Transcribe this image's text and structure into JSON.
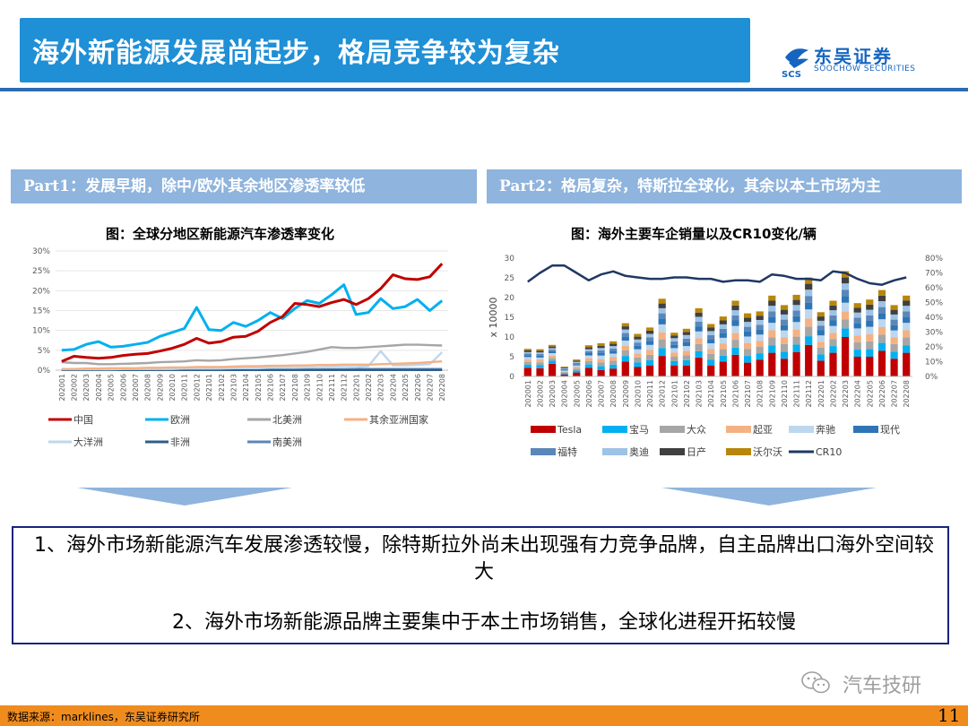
{
  "header": {
    "title": "海外新能源发展尚起步，格局竞争较为复杂",
    "logo_name": "东吴证券",
    "logo_mark": "SCS",
    "logo_sub": "SOOCHOW SECURITIES"
  },
  "parts": {
    "part1": "Part1：发展早期，除中/欧外其余地区渗透率较低",
    "part2": "Part2：格局复杂，特斯拉全球化，其余以本土市场为主"
  },
  "figure1": {
    "title": "图：全球分地区新能源汽车渗透率变化"
  },
  "figure2": {
    "title": "图：海外主要车企销量以及CR10变化/辆"
  },
  "summary": {
    "point1": "1、海外市场新能源汽车发展渗透较慢，除特斯拉外尚未出现强有力竞争品牌，自主品牌出口海外空间较大",
    "point2": "2、海外市场新能源品牌主要集中于本土市场销售，全球化进程开拓较慢"
  },
  "watermark": "汽车技研",
  "footer": {
    "source": "数据来源：marklines，东吴证券研究所",
    "page": "11"
  },
  "colors": {
    "title_bar": "#1f8fd6",
    "part_header": "#8fb4dd",
    "footer": "#f08c1e",
    "logo": "#1565c0"
  },
  "chart_data": [
    {
      "type": "line",
      "title": "图：全球分地区新能源汽车渗透率变化",
      "x": [
        "202001",
        "202002",
        "202003",
        "202004",
        "202005",
        "202006",
        "202007",
        "202008",
        "202009",
        "202010",
        "202011",
        "202012",
        "202101",
        "202102",
        "202103",
        "202104",
        "202105",
        "202106",
        "202107",
        "202108",
        "202109",
        "202110",
        "202111",
        "202112",
        "202201",
        "202202",
        "202203",
        "202204",
        "202205",
        "202206",
        "202207",
        "202208"
      ],
      "y_ticks": [
        "0%",
        "5%",
        "10%",
        "15%",
        "20%",
        "25%",
        "30%"
      ],
      "ylim": [
        0,
        30
      ],
      "series": [
        {
          "name": "中国",
          "color": "#c00000",
          "values": [
            2.2,
            3.5,
            3.2,
            3.0,
            3.2,
            3.7,
            4.0,
            4.2,
            4.8,
            5.5,
            6.5,
            8.0,
            6.8,
            7.2,
            8.3,
            8.5,
            9.8,
            12.0,
            13.5,
            16.8,
            16.5,
            16.0,
            17.0,
            17.8,
            16.5,
            18.0,
            20.5,
            24.0,
            23.0,
            22.8,
            23.5,
            26.8
          ]
        },
        {
          "name": "欧洲",
          "color": "#00b0f0",
          "values": [
            5.0,
            5.2,
            6.5,
            7.2,
            5.8,
            6.0,
            6.5,
            7.0,
            8.5,
            9.5,
            10.5,
            15.8,
            10.2,
            10.0,
            12.0,
            11.0,
            12.5,
            14.5,
            13.0,
            15.5,
            17.5,
            16.8,
            19.0,
            21.5,
            14.0,
            14.5,
            18.0,
            15.5,
            16.0,
            17.8,
            15.0,
            17.5
          ]
        },
        {
          "name": "北美洲",
          "color": "#a6a6a6",
          "values": [
            2.0,
            1.8,
            1.8,
            1.5,
            1.5,
            1.6,
            1.7,
            1.8,
            2.0,
            2.1,
            2.2,
            2.5,
            2.4,
            2.5,
            2.8,
            3.0,
            3.2,
            3.5,
            3.8,
            4.2,
            4.6,
            5.2,
            5.8,
            5.6,
            5.6,
            5.8,
            6.0,
            6.2,
            6.4,
            6.4,
            6.3,
            6.2
          ]
        },
        {
          "name": "其余亚洲国家",
          "color": "#f4b183",
          "values": [
            0.3,
            0.3,
            0.4,
            0.4,
            0.5,
            0.5,
            0.5,
            0.6,
            0.6,
            0.7,
            0.7,
            0.8,
            0.8,
            0.8,
            0.9,
            1.0,
            1.0,
            1.1,
            1.1,
            1.2,
            1.2,
            1.3,
            1.3,
            1.4,
            1.4,
            1.4,
            1.5,
            1.6,
            1.7,
            1.8,
            2.0,
            2.2
          ]
        },
        {
          "name": "大洋洲",
          "color": "#bdd7ee",
          "values": [
            0.2,
            0.2,
            0.2,
            0.2,
            0.2,
            0.3,
            0.3,
            0.3,
            0.3,
            0.3,
            0.4,
            0.4,
            0.4,
            0.4,
            0.5,
            0.5,
            0.5,
            0.6,
            0.6,
            0.6,
            0.7,
            0.7,
            0.8,
            0.8,
            0.8,
            1.0,
            4.8,
            1.2,
            1.2,
            1.3,
            1.5,
            4.5
          ]
        },
        {
          "name": "非洲",
          "color": "#2e5e8a",
          "values": [
            0.05,
            0.05,
            0.05,
            0.05,
            0.05,
            0.05,
            0.05,
            0.05,
            0.05,
            0.05,
            0.05,
            0.05,
            0.05,
            0.05,
            0.05,
            0.05,
            0.05,
            0.05,
            0.05,
            0.05,
            0.05,
            0.05,
            0.05,
            0.05,
            0.05,
            0.05,
            0.05,
            0.05,
            0.05,
            0.05,
            0.05,
            0.05
          ]
        },
        {
          "name": "南美洲",
          "color": "#5b87b8",
          "values": [
            0.1,
            0.1,
            0.1,
            0.1,
            0.1,
            0.1,
            0.1,
            0.1,
            0.1,
            0.1,
            0.1,
            0.1,
            0.1,
            0.1,
            0.2,
            0.2,
            0.2,
            0.2,
            0.2,
            0.2,
            0.2,
            0.2,
            0.2,
            0.2,
            0.3,
            0.3,
            0.3,
            0.3,
            0.3,
            0.3,
            0.3,
            0.3
          ]
        }
      ]
    },
    {
      "type": "bar",
      "stacked": true,
      "title": "图：海外主要车企销量以及CR10变化/辆",
      "y_unit_label": "x 10000",
      "ylim": [
        0,
        30
      ],
      "y_ticks": [
        "0",
        "5",
        "10",
        "15",
        "20",
        "25",
        "30"
      ],
      "y2lim": [
        0,
        80
      ],
      "y2_ticks": [
        "0%",
        "10%",
        "20%",
        "30%",
        "40%",
        "50%",
        "60%",
        "70%",
        "80%"
      ],
      "x": [
        "202001",
        "202002",
        "202003",
        "202004",
        "202005",
        "202006",
        "202007",
        "202008",
        "202009",
        "202010",
        "202011",
        "202012",
        "202101",
        "202102",
        "202103",
        "202104",
        "202105",
        "202106",
        "202107",
        "202108",
        "202109",
        "202110",
        "202111",
        "202112",
        "202201",
        "202202",
        "202203",
        "202204",
        "202205",
        "202206",
        "202207",
        "202208"
      ],
      "series": [
        {
          "name": "Tesla",
          "color": "#c00000",
          "values": [
            2.2,
            2.1,
            3.2,
            0.5,
            1.0,
            2.2,
            1.6,
            2.0,
            3.8,
            2.4,
            2.8,
            5.2,
            2.8,
            2.8,
            4.8,
            2.8,
            3.8,
            5.5,
            3.5,
            4.2,
            6.0,
            4.5,
            6.2,
            8.0,
            4.0,
            6.0,
            10.0,
            5.0,
            5.0,
            6.5,
            4.5,
            6.0
          ]
        },
        {
          "name": "宝马",
          "color": "#00b0f0",
          "values": [
            0.8,
            0.8,
            0.8,
            0.3,
            0.5,
            0.9,
            1.0,
            1.0,
            1.4,
            1.2,
            1.3,
            2.0,
            1.1,
            1.3,
            1.6,
            1.4,
            1.5,
            1.8,
            1.7,
            1.6,
            1.9,
            1.8,
            1.9,
            2.2,
            1.6,
            1.7,
            2.2,
            1.8,
            1.9,
            2.0,
            1.8,
            1.9
          ]
        },
        {
          "name": "大众",
          "color": "#a6a6a6",
          "values": [
            0.7,
            0.7,
            0.7,
            0.3,
            0.5,
            0.8,
            1.0,
            1.0,
            1.4,
            1.2,
            1.4,
            2.2,
            1.2,
            1.3,
            1.8,
            1.5,
            1.6,
            2.0,
            1.8,
            1.7,
            2.0,
            1.9,
            2.0,
            2.4,
            1.7,
            1.8,
            2.3,
            1.9,
            2.0,
            2.1,
            1.9,
            2.0
          ]
        },
        {
          "name": "起亚",
          "color": "#f4b183",
          "values": [
            0.6,
            0.6,
            0.6,
            0.2,
            0.4,
            0.7,
            0.8,
            0.9,
            1.2,
            1.0,
            1.2,
            1.8,
            1.0,
            1.1,
            1.5,
            1.3,
            1.4,
            1.7,
            1.5,
            1.5,
            1.8,
            1.7,
            1.8,
            2.1,
            1.5,
            1.6,
            2.0,
            1.7,
            1.8,
            1.9,
            1.7,
            1.8
          ]
        },
        {
          "name": "奔驰",
          "color": "#bdd7ee",
          "values": [
            0.6,
            0.6,
            0.6,
            0.2,
            0.4,
            0.7,
            0.9,
            0.9,
            1.3,
            1.1,
            1.3,
            2.0,
            1.1,
            1.2,
            1.7,
            1.4,
            1.5,
            1.8,
            1.6,
            1.6,
            1.9,
            1.8,
            1.9,
            2.3,
            1.6,
            1.7,
            2.2,
            1.8,
            1.9,
            2.0,
            1.8,
            1.9
          ]
        },
        {
          "name": "现代",
          "color": "#2e75b6",
          "values": [
            0.5,
            0.5,
            0.5,
            0.2,
            0.3,
            0.6,
            0.7,
            0.7,
            1.0,
            0.9,
            1.0,
            1.5,
            0.9,
            1.0,
            1.3,
            1.1,
            1.2,
            1.4,
            1.3,
            1.3,
            1.5,
            1.4,
            1.5,
            1.8,
            1.3,
            1.4,
            1.7,
            1.4,
            1.5,
            1.6,
            1.4,
            1.5
          ]
        },
        {
          "name": "福特",
          "color": "#5b87b8",
          "values": [
            0.4,
            0.4,
            0.4,
            0.2,
            0.3,
            0.5,
            0.6,
            0.6,
            0.9,
            0.8,
            0.9,
            1.3,
            0.8,
            0.9,
            1.2,
            1.0,
            1.1,
            1.3,
            1.2,
            1.2,
            1.4,
            1.3,
            1.4,
            1.6,
            1.2,
            1.3,
            1.6,
            1.3,
            1.4,
            1.5,
            1.3,
            1.4
          ]
        },
        {
          "name": "奥迪",
          "color": "#9dc3e6",
          "values": [
            0.4,
            0.4,
            0.4,
            0.2,
            0.3,
            0.5,
            0.6,
            0.6,
            0.9,
            0.8,
            0.9,
            1.3,
            0.8,
            0.9,
            1.2,
            1.0,
            1.1,
            1.3,
            1.2,
            1.2,
            1.4,
            1.3,
            1.4,
            1.6,
            1.2,
            1.3,
            1.6,
            1.3,
            1.4,
            1.5,
            1.3,
            1.4
          ]
        },
        {
          "name": "日产",
          "color": "#404040",
          "values": [
            0.4,
            0.4,
            0.4,
            0.2,
            0.3,
            0.5,
            0.6,
            0.6,
            0.8,
            0.7,
            0.8,
            1.2,
            0.7,
            0.8,
            1.1,
            0.9,
            1.0,
            1.2,
            1.1,
            1.1,
            1.3,
            1.2,
            1.3,
            1.5,
            1.1,
            1.2,
            1.5,
            1.2,
            1.3,
            1.4,
            1.2,
            1.3
          ]
        },
        {
          "name": "沃尔沃",
          "color": "#b8860b",
          "values": [
            0.4,
            0.4,
            0.4,
            0.2,
            0.3,
            0.5,
            0.6,
            0.6,
            0.8,
            0.7,
            0.8,
            1.2,
            0.7,
            0.8,
            1.1,
            0.9,
            1.0,
            1.2,
            1.1,
            1.1,
            1.3,
            1.2,
            1.3,
            1.6,
            1.1,
            1.2,
            1.6,
            1.2,
            1.3,
            1.4,
            1.2,
            1.3
          ]
        },
        {
          "name": "CR10",
          "color": "#1f3864",
          "type": "line",
          "axis": "right",
          "values": [
            0.64,
            0.7,
            0.75,
            0.75,
            0.7,
            0.65,
            0.69,
            0.71,
            0.68,
            0.67,
            0.66,
            0.66,
            0.67,
            0.67,
            0.66,
            0.66,
            0.64,
            0.65,
            0.65,
            0.64,
            0.69,
            0.68,
            0.66,
            0.66,
            0.65,
            0.71,
            0.7,
            0.66,
            0.63,
            0.62,
            0.65,
            0.67
          ]
        }
      ]
    }
  ]
}
